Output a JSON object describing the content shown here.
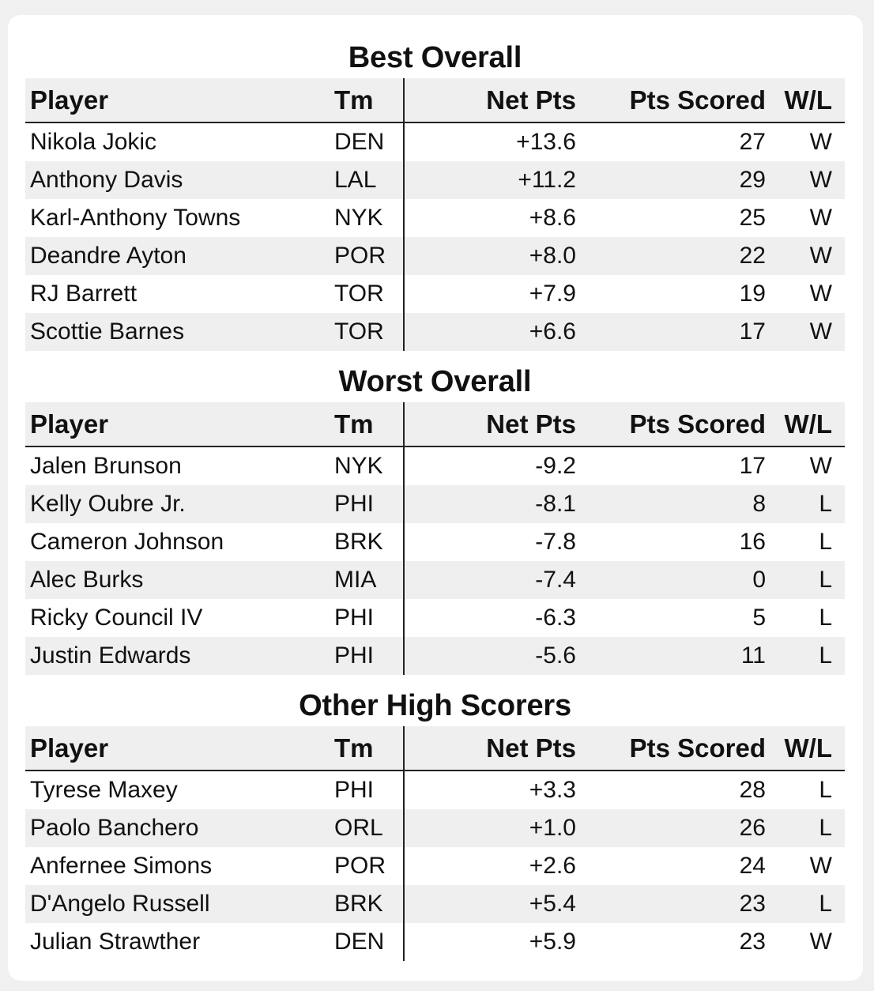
{
  "sections": [
    {
      "title": "Best Overall",
      "headers": {
        "player": "Player",
        "tm": "Tm",
        "net": "Net Pts",
        "pts": "Pts Scored",
        "wl": "W/L"
      },
      "rows": [
        {
          "player": "Nikola Jokic",
          "tm": "DEN",
          "net": "+13.6",
          "pts": "27",
          "wl": "W"
        },
        {
          "player": "Anthony Davis",
          "tm": "LAL",
          "net": "+11.2",
          "pts": "29",
          "wl": "W"
        },
        {
          "player": "Karl-Anthony Towns",
          "tm": "NYK",
          "net": "+8.6",
          "pts": "25",
          "wl": "W"
        },
        {
          "player": "Deandre Ayton",
          "tm": "POR",
          "net": "+8.0",
          "pts": "22",
          "wl": "W"
        },
        {
          "player": "RJ Barrett",
          "tm": "TOR",
          "net": "+7.9",
          "pts": "19",
          "wl": "W"
        },
        {
          "player": "Scottie Barnes",
          "tm": "TOR",
          "net": "+6.6",
          "pts": "17",
          "wl": "W"
        }
      ]
    },
    {
      "title": "Worst Overall",
      "headers": {
        "player": "Player",
        "tm": "Tm",
        "net": "Net Pts",
        "pts": "Pts Scored",
        "wl": "W/L"
      },
      "rows": [
        {
          "player": "Jalen Brunson",
          "tm": "NYK",
          "net": "-9.2",
          "pts": "17",
          "wl": "W"
        },
        {
          "player": "Kelly Oubre Jr.",
          "tm": "PHI",
          "net": "-8.1",
          "pts": "8",
          "wl": "L"
        },
        {
          "player": "Cameron Johnson",
          "tm": "BRK",
          "net": "-7.8",
          "pts": "16",
          "wl": "L"
        },
        {
          "player": "Alec Burks",
          "tm": "MIA",
          "net": "-7.4",
          "pts": "0",
          "wl": "L"
        },
        {
          "player": "Ricky Council IV",
          "tm": "PHI",
          "net": "-6.3",
          "pts": "5",
          "wl": "L"
        },
        {
          "player": "Justin Edwards",
          "tm": "PHI",
          "net": "-5.6",
          "pts": "11",
          "wl": "L"
        }
      ]
    },
    {
      "title": "Other High Scorers",
      "headers": {
        "player": "Player",
        "tm": "Tm",
        "net": "Net Pts",
        "pts": "Pts Scored",
        "wl": "W/L"
      },
      "rows": [
        {
          "player": "Tyrese Maxey",
          "tm": "PHI",
          "net": "+3.3",
          "pts": "28",
          "wl": "L"
        },
        {
          "player": "Paolo Banchero",
          "tm": "ORL",
          "net": "+1.0",
          "pts": "26",
          "wl": "L"
        },
        {
          "player": "Anfernee Simons",
          "tm": "POR",
          "net": "+2.6",
          "pts": "24",
          "wl": "W"
        },
        {
          "player": "D'Angelo Russell",
          "tm": "BRK",
          "net": "+5.4",
          "pts": "23",
          "wl": "L"
        },
        {
          "player": "Julian Strawther",
          "tm": "DEN",
          "net": "+5.9",
          "pts": "23",
          "wl": "W"
        }
      ]
    }
  ]
}
